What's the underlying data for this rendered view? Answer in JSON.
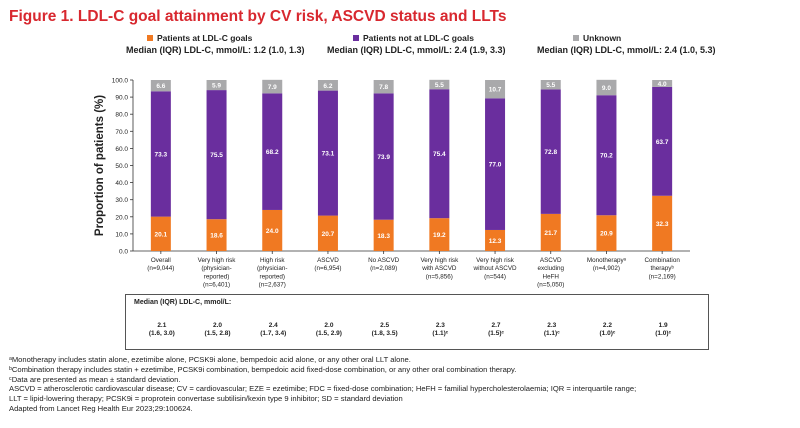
{
  "title": "Figure 1. LDL-C goal attainment by CV risk, ASCVD status and LLTs",
  "legend": [
    {
      "label": "Patients at LDL-C goals",
      "color": "#f07922"
    },
    {
      "label": "Patients not at LDL-C goals",
      "color": "#6a2e9e"
    },
    {
      "label": "Unknown",
      "color": "#a9a9ab"
    }
  ],
  "median_headers": [
    "Median (IQR) LDL-C, mmol/L: 1.2 (1.0, 1.3)",
    "Median (IQR) LDL-C, mmol/L: 2.4 (1.9, 3.3)",
    "Median (IQR) LDL-C, mmol/L: 2.4 (1.0, 5.3)"
  ],
  "chart_data": {
    "type": "bar",
    "stacked": true,
    "ylabel": "Proportion of patients (%)",
    "ylim": [
      0,
      100
    ],
    "yticks": [
      "0.0",
      "10.0",
      "20.0",
      "30.0",
      "40.0",
      "50.0",
      "60.0",
      "70.0",
      "80.0",
      "90.0",
      "100.0"
    ],
    "categories": [
      [
        "Overall",
        "(n=9,044)"
      ],
      [
        "Very high risk",
        "(physician-",
        "reported)",
        "(n=6,401)"
      ],
      [
        "High risk",
        "(physician-",
        "reported)",
        "(n=2,637)"
      ],
      [
        "ASCVD",
        "(n=6,954)"
      ],
      [
        "No ASCVD",
        "(n=2,089)"
      ],
      [
        "Very high risk",
        "with ASCVD",
        "(n=5,856)"
      ],
      [
        "Very high risk",
        "without ASCVD",
        "(n=544)"
      ],
      [
        "ASCVD",
        "excluding",
        "HeFH",
        "(n=5,050)"
      ],
      [
        "Monotherapyᵃ",
        "(n=4,902)"
      ],
      [
        "Combination",
        "therapyᵇ",
        "(n=2,169)"
      ]
    ],
    "series": [
      {
        "name": "Patients at LDL-C goals",
        "color": "#f07922",
        "values": [
          20.1,
          18.6,
          24.0,
          20.7,
          18.3,
          19.2,
          12.3,
          21.7,
          20.9,
          32.3
        ],
        "labels": [
          "20.1",
          "18.6",
          "24.0",
          "20.7",
          "18.3",
          "19.2",
          "12.3",
          "21.7",
          "20.9",
          "32.3"
        ]
      },
      {
        "name": "Patients not at LDL-C goals",
        "color": "#6a2e9e",
        "values": [
          73.3,
          75.5,
          68.2,
          73.1,
          73.9,
          75.4,
          77.0,
          72.8,
          70.2,
          63.7
        ],
        "labels": [
          "73.3",
          "75.5",
          "68.2",
          "73.1",
          "73.9",
          "75.4",
          "77.0",
          "72.8",
          "70.2",
          "63.7"
        ]
      },
      {
        "name": "Unknown",
        "color": "#a9a9ab",
        "values": [
          6.6,
          5.9,
          7.9,
          6.2,
          7.8,
          5.5,
          10.7,
          5.5,
          9.0,
          4.0
        ],
        "labels": [
          "6.6",
          "5.9",
          "7.9",
          "6.2",
          "7.8",
          "5.5",
          "10.7",
          "5.5",
          "9.0",
          "4.0"
        ]
      }
    ]
  },
  "median_table": {
    "header": "Median (IQR) LDL-C, mmol/L:",
    "values": [
      {
        "median": "2.1",
        "range": "(1.6, 3.0)"
      },
      {
        "median": "2.0",
        "range": "(1.5, 2.8)"
      },
      {
        "median": "2.4",
        "range": "(1.7, 3.4)"
      },
      {
        "median": "2.0",
        "range": "(1.5, 2.9)"
      },
      {
        "median": "2.5",
        "range": "(1.8, 3.5)"
      },
      {
        "median": "2.3",
        "range": "(1.1)ᶜ"
      },
      {
        "median": "2.7",
        "range": "(1.5)ᶜ"
      },
      {
        "median": "2.3",
        "range": "(1.1)ᶜ"
      },
      {
        "median": "2.2",
        "range": "(1.0)ᶜ"
      },
      {
        "median": "1.9",
        "range": "(1.0)ᶜ"
      }
    ]
  },
  "footnotes": [
    "ᵃMonotherapy includes statin alone, ezetimibe alone, PCSK9i alone, bempedoic acid alone, or any other oral LLT alone.",
    "ᵇCombination therapy includes statin + ezetimibe, PCSK9i combination, bempedoic acid fixed-dose combination, or any other oral combination therapy.",
    "ᶜData are presented as mean ± standard deviation.",
    "ASCVD = atherosclerotic cardiovascular disease; CV = cardiovascular; EZE = ezetimibe; FDC = fixed-dose combination; HeFH = familial hypercholesterolaemia; IQR = interquartile range;",
    "LLT = lipid-lowering therapy; PCSK9i = proprotein convertase subtilisin/kexin type 9 inhibitor; SD = standard deviation",
    "Adapted from Lancet Reg Health Eur 2023;29:100624."
  ]
}
